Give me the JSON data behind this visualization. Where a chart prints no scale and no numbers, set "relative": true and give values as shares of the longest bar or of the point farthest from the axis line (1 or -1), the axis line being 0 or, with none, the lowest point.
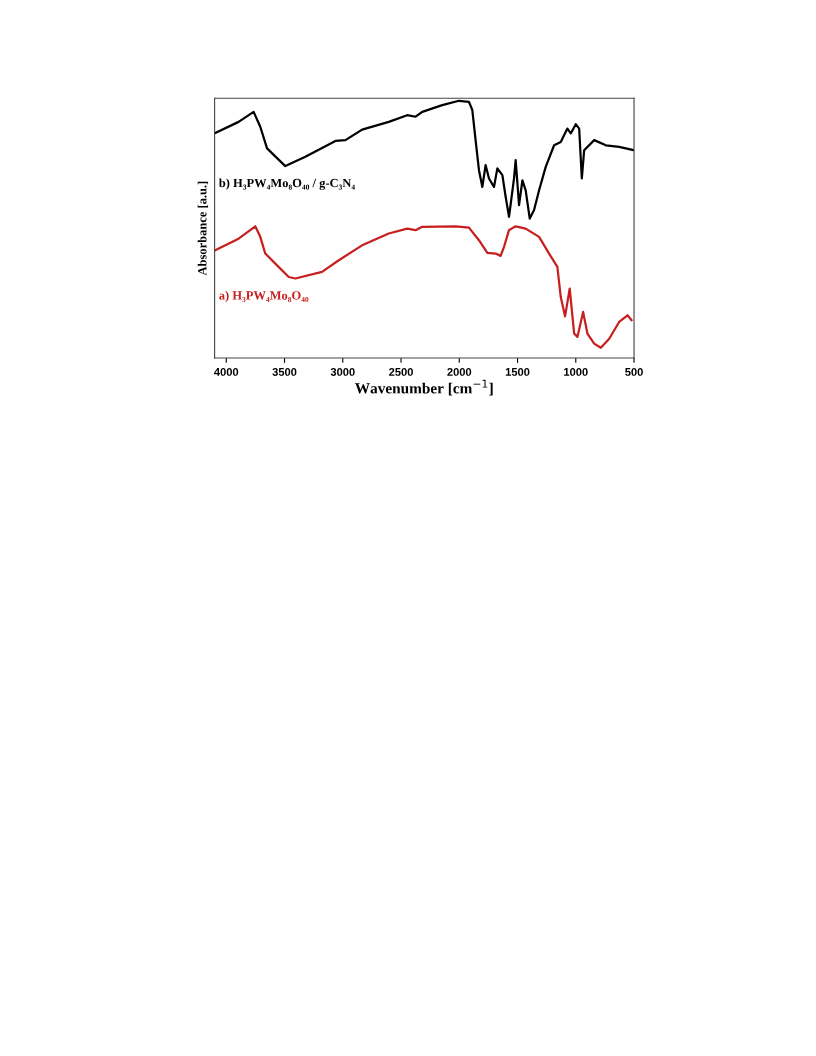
{
  "chart_data": {
    "type": "line",
    "relative": true,
    "xlabel": "Wavenumber [cm$^{−1}$]",
    "ylabel": "Absorbance [a.u.]",
    "xlim": [
      4100,
      500
    ],
    "xticks": [
      4000,
      3500,
      3000,
      2500,
      2000,
      1500,
      1000,
      500
    ],
    "tick_labels": "x",
    "grid": false,
    "legend": false,
    "marker": "none",
    "line_style": "solid",
    "series": [
      {
        "name": "b) H₃PW₄Mo₈O₄₀ / g-C₃N₄",
        "color": "#000000",
        "x": [
          4095,
          3894,
          3765,
          3708,
          3650,
          3493,
          3321,
          3063,
          2977,
          2834,
          2605,
          2447,
          2375,
          2318,
          2146,
          2003,
          1917,
          1888,
          1860,
          1831,
          1802,
          1774,
          1745,
          1702,
          1673,
          1630,
          1602,
          1573,
          1530,
          1516,
          1487,
          1458,
          1430,
          1395,
          1358,
          1315,
          1258,
          1186,
          1129,
          1072,
          1043,
          1000,
          971,
          948,
          928,
          842,
          742,
          628,
          504
        ],
        "values": [
          0.875,
          0.918,
          0.957,
          0.899,
          0.815,
          0.746,
          0.782,
          0.844,
          0.847,
          0.888,
          0.918,
          0.944,
          0.938,
          0.957,
          0.983,
          1.0,
          0.996,
          0.964,
          0.847,
          0.73,
          0.665,
          0.75,
          0.698,
          0.665,
          0.737,
          0.711,
          0.627,
          0.549,
          0.698,
          0.769,
          0.594,
          0.691,
          0.652,
          0.542,
          0.575,
          0.652,
          0.743,
          0.827,
          0.84,
          0.892,
          0.873,
          0.909,
          0.892,
          0.698,
          0.808,
          0.847,
          0.827,
          0.821,
          0.808
        ]
      },
      {
        "name": "a) H₃PW₄Mo₈O₄₀",
        "color": "#c81e1e",
        "x": [
          4095,
          3894,
          3751,
          3708,
          3665,
          3579,
          3464,
          3407,
          3178,
          3034,
          2834,
          2605,
          2447,
          2375,
          2318,
          2032,
          1917,
          1831,
          1759,
          1688,
          1645,
          1616,
          1573,
          1516,
          1430,
          1315,
          1229,
          1158,
          1129,
          1092,
          1052,
          1014,
          986,
          937,
          900,
          842,
          785,
          713,
          628,
          556,
          522
        ],
        "values": [
          0.419,
          0.464,
          0.512,
          0.471,
          0.406,
          0.367,
          0.315,
          0.309,
          0.335,
          0.38,
          0.438,
          0.484,
          0.503,
          0.497,
          0.51,
          0.512,
          0.507,
          0.458,
          0.409,
          0.406,
          0.397,
          0.432,
          0.497,
          0.512,
          0.503,
          0.471,
          0.406,
          0.354,
          0.237,
          0.162,
          0.27,
          0.095,
          0.082,
          0.179,
          0.095,
          0.056,
          0.04,
          0.075,
          0.14,
          0.166,
          0.147
        ]
      }
    ]
  }
}
